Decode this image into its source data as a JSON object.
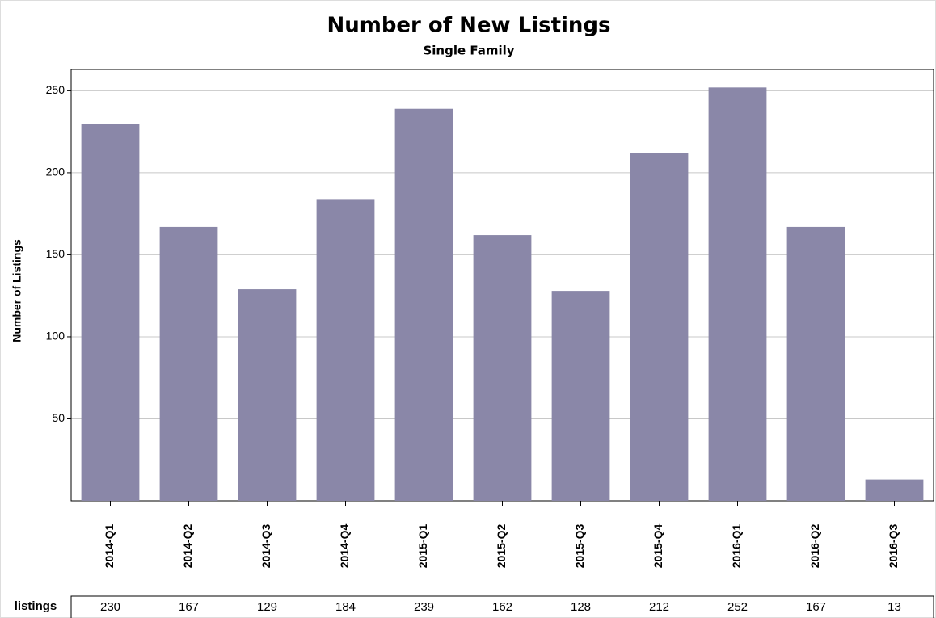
{
  "chart_data": {
    "type": "bar",
    "title": "Number of New Listings",
    "subtitle": "Single Family",
    "y_label": "Number of Listings",
    "table_label": "listings",
    "categories": [
      "2014-Q1",
      "2014-Q2",
      "2014-Q3",
      "2014-Q4",
      "2015-Q1",
      "2015-Q2",
      "2015-Q3",
      "2015-Q4",
      "2016-Q1",
      "2016-Q2",
      "2016-Q3"
    ],
    "values": [
      230,
      167,
      129,
      184,
      239,
      162,
      128,
      212,
      252,
      167,
      13
    ],
    "color": "#8a87a8",
    "ylim": [
      0,
      263
    ],
    "yticks": [
      50,
      100,
      150,
      200,
      250
    ],
    "grid": true
  }
}
